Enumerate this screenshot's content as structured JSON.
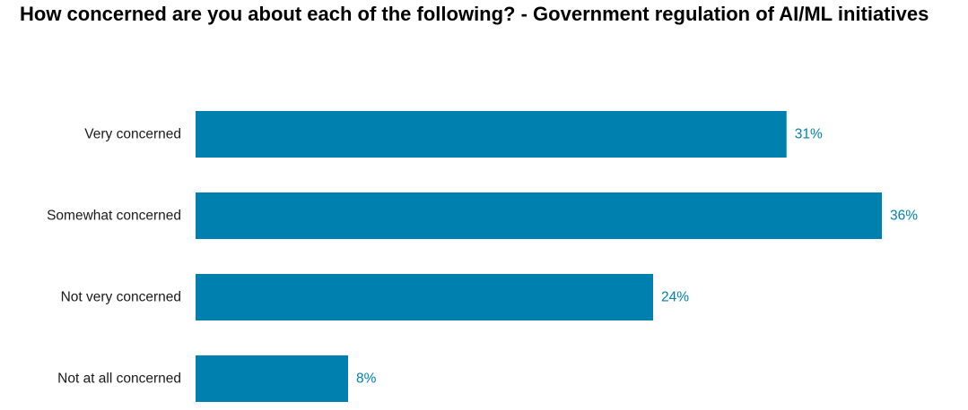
{
  "chart_data": {
    "type": "bar",
    "orientation": "horizontal",
    "title": "How concerned are you about each of the following? - Government regulation of AI/ML initiatives",
    "categories": [
      "Very concerned",
      "Somewhat concerned",
      "Not very concerned",
      "Not at all concerned"
    ],
    "values": [
      31,
      36,
      24,
      8
    ],
    "value_labels": [
      "31%",
      "36%",
      "24%",
      "8%"
    ],
    "unit": "%",
    "xlim": [
      0,
      36
    ],
    "bar_color": "#0080AF",
    "label_color": "#0080AF",
    "grid": false,
    "legend": "none"
  }
}
